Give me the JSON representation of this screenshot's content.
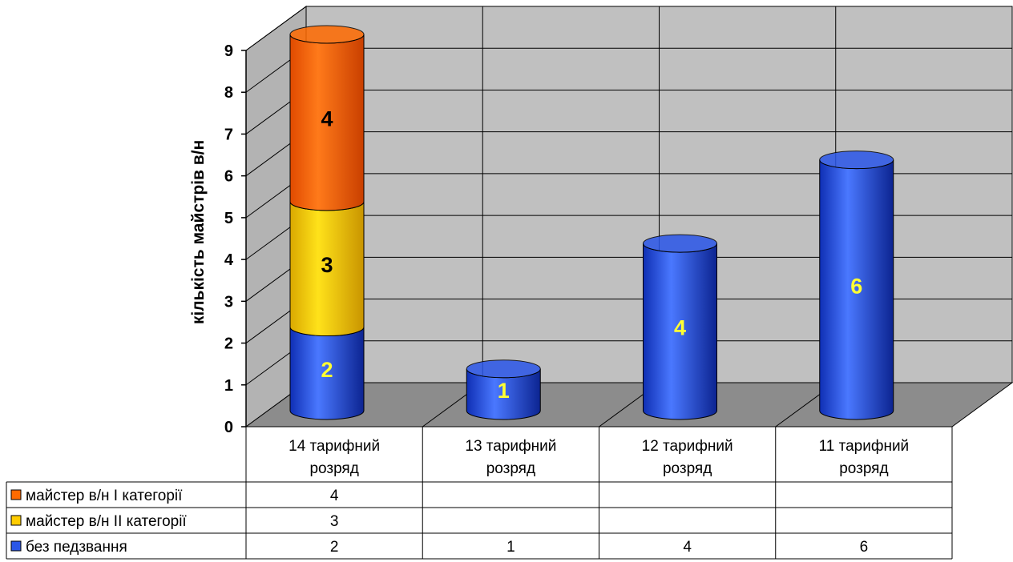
{
  "chart_data": {
    "type": "bar",
    "subtype": "stacked-3d-cylinder",
    "title": "",
    "ylabel": "кількість майстрів в/н",
    "ylim": [
      0,
      9
    ],
    "yticks": [
      "0",
      "1",
      "2",
      "3",
      "4",
      "5",
      "6",
      "7",
      "8",
      "9"
    ],
    "grid": true,
    "legend": "data-table-left",
    "categories": [
      [
        "14 тарифний",
        "розряд"
      ],
      [
        "13 тарифний",
        "розряд"
      ],
      [
        "12 тарифний",
        "розряд"
      ],
      [
        "11 тарифний",
        "розряд"
      ]
    ],
    "series": [
      {
        "name": "без педзвання",
        "values": [
          2,
          1,
          4,
          6
        ],
        "color": "#2a56e8",
        "label_color": "#ffff33",
        "table": [
          "2",
          "1",
          "4",
          "6"
        ]
      },
      {
        "name": "майстер в/н ІІ категорії",
        "values": [
          3,
          null,
          null,
          null
        ],
        "color": "#ffcc00",
        "label_color": "#000000",
        "table": [
          "3",
          "",
          "",
          ""
        ]
      },
      {
        "name": "майстер в/н І категорії",
        "values": [
          4,
          null,
          null,
          null
        ],
        "color": "#ff6a00",
        "label_color": "#000000",
        "table": [
          "4",
          "",
          "",
          ""
        ]
      }
    ],
    "table_order": [
      2,
      1,
      0
    ]
  }
}
